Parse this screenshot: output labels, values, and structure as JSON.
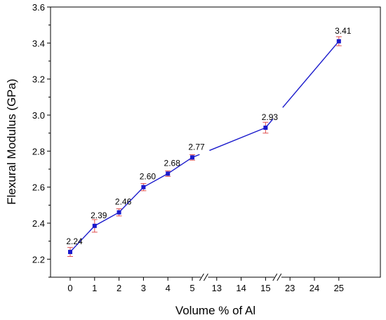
{
  "chart_data": {
    "type": "line",
    "xlabel": "Volume % of Al",
    "ylabel": "Flexural Modulus (GPa)",
    "ylim": [
      2.1,
      3.6
    ],
    "y_ticks": [
      "2.2",
      "2.4",
      "2.6",
      "2.8",
      "3.0",
      "3.2",
      "3.4",
      "3.6"
    ],
    "x_ticks": [
      "0",
      "1",
      "2",
      "3",
      "4",
      "5",
      "13",
      "14",
      "15",
      "23",
      "24",
      "25"
    ],
    "axis_breaks": [
      "5-13",
      "15-23"
    ],
    "grid": false,
    "legend": "none",
    "series": [
      {
        "color": "#1a1acc",
        "marker_color": "#1a1acc",
        "errorbar_color": "#e05050",
        "points": [
          {
            "x": 0,
            "y": 2.24,
            "err": 0.025,
            "label": "2.24"
          },
          {
            "x": 1,
            "y": 2.385,
            "err": 0.035,
            "label": "2.39"
          },
          {
            "x": 2,
            "y": 2.46,
            "err": 0.02,
            "label": "2.46"
          },
          {
            "x": 3,
            "y": 2.6,
            "err": 0.02,
            "label": "2.60"
          },
          {
            "x": 4,
            "y": 2.675,
            "err": 0.015,
            "label": "2.68"
          },
          {
            "x": 5,
            "y": 2.765,
            "err": 0.015,
            "label": "2.77"
          },
          {
            "x": 15,
            "y": 2.93,
            "err": 0.03,
            "label": "2.93"
          },
          {
            "x": 25,
            "y": 3.41,
            "err": 0.025,
            "label": "3.41"
          }
        ]
      }
    ]
  }
}
